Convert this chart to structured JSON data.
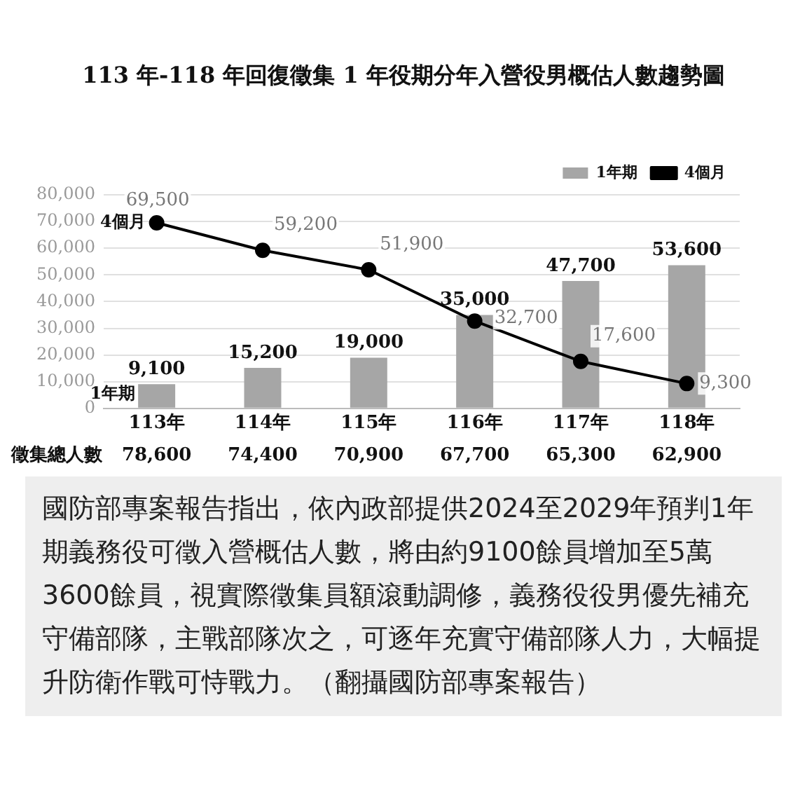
{
  "chart_data": {
    "type": "bar",
    "title": "113 年-118 年回復徵集 1 年役期分年入營役男概估人數趨勢圖",
    "categories": [
      "113年",
      "114年",
      "115年",
      "116年",
      "117年",
      "118年"
    ],
    "series": [
      {
        "name": "1年期",
        "color": "#a6a6a6",
        "values": [
          9100,
          15200,
          19000,
          35000,
          47700,
          53600
        ],
        "value_labels": [
          "9,100",
          "15,200",
          "19,000",
          "35,000",
          "47,700",
          "53,600"
        ]
      },
      {
        "name": "4個月",
        "type": "line",
        "color": "#000000",
        "values": [
          69500,
          59200,
          51900,
          32700,
          17600,
          9300
        ],
        "value_labels": [
          "69,500",
          "59,200",
          "51,900",
          "32,700",
          "17,600",
          "9,300"
        ]
      }
    ],
    "ylim": [
      0,
      80000
    ],
    "yticks": [
      {
        "value": 0,
        "label": "0"
      },
      {
        "value": 10000,
        "label": "10,000"
      },
      {
        "value": 20000,
        "label": "20,000"
      },
      {
        "value": 30000,
        "label": "30,000"
      },
      {
        "value": 40000,
        "label": "40,000"
      },
      {
        "value": 50000,
        "label": "50,000"
      },
      {
        "value": 60000,
        "label": "60,000"
      },
      {
        "value": 70000,
        "label": "70,000"
      },
      {
        "value": 80000,
        "label": "80,000"
      }
    ],
    "grid": "y",
    "legend": "top right",
    "marker": "circle",
    "annotations": [
      "徵集總人數",
      "78,600",
      "74,400",
      "70,900",
      "67,700",
      "65,300",
      "62,900",
      "國防部專案報告指出，依內政部提供2024至2029年預判1年期義務役可徵入營概估人數，將由約9100餘員增加至5萬3600餘員，視實際徵集員額滾動調修，義務役役男優先補充守備部隊，主戰部隊次之，可逐年充實守備部隊人力，大幅提升防衛作戰可恃戰力。（翻攝國防部專案報告）"
    ]
  }
}
